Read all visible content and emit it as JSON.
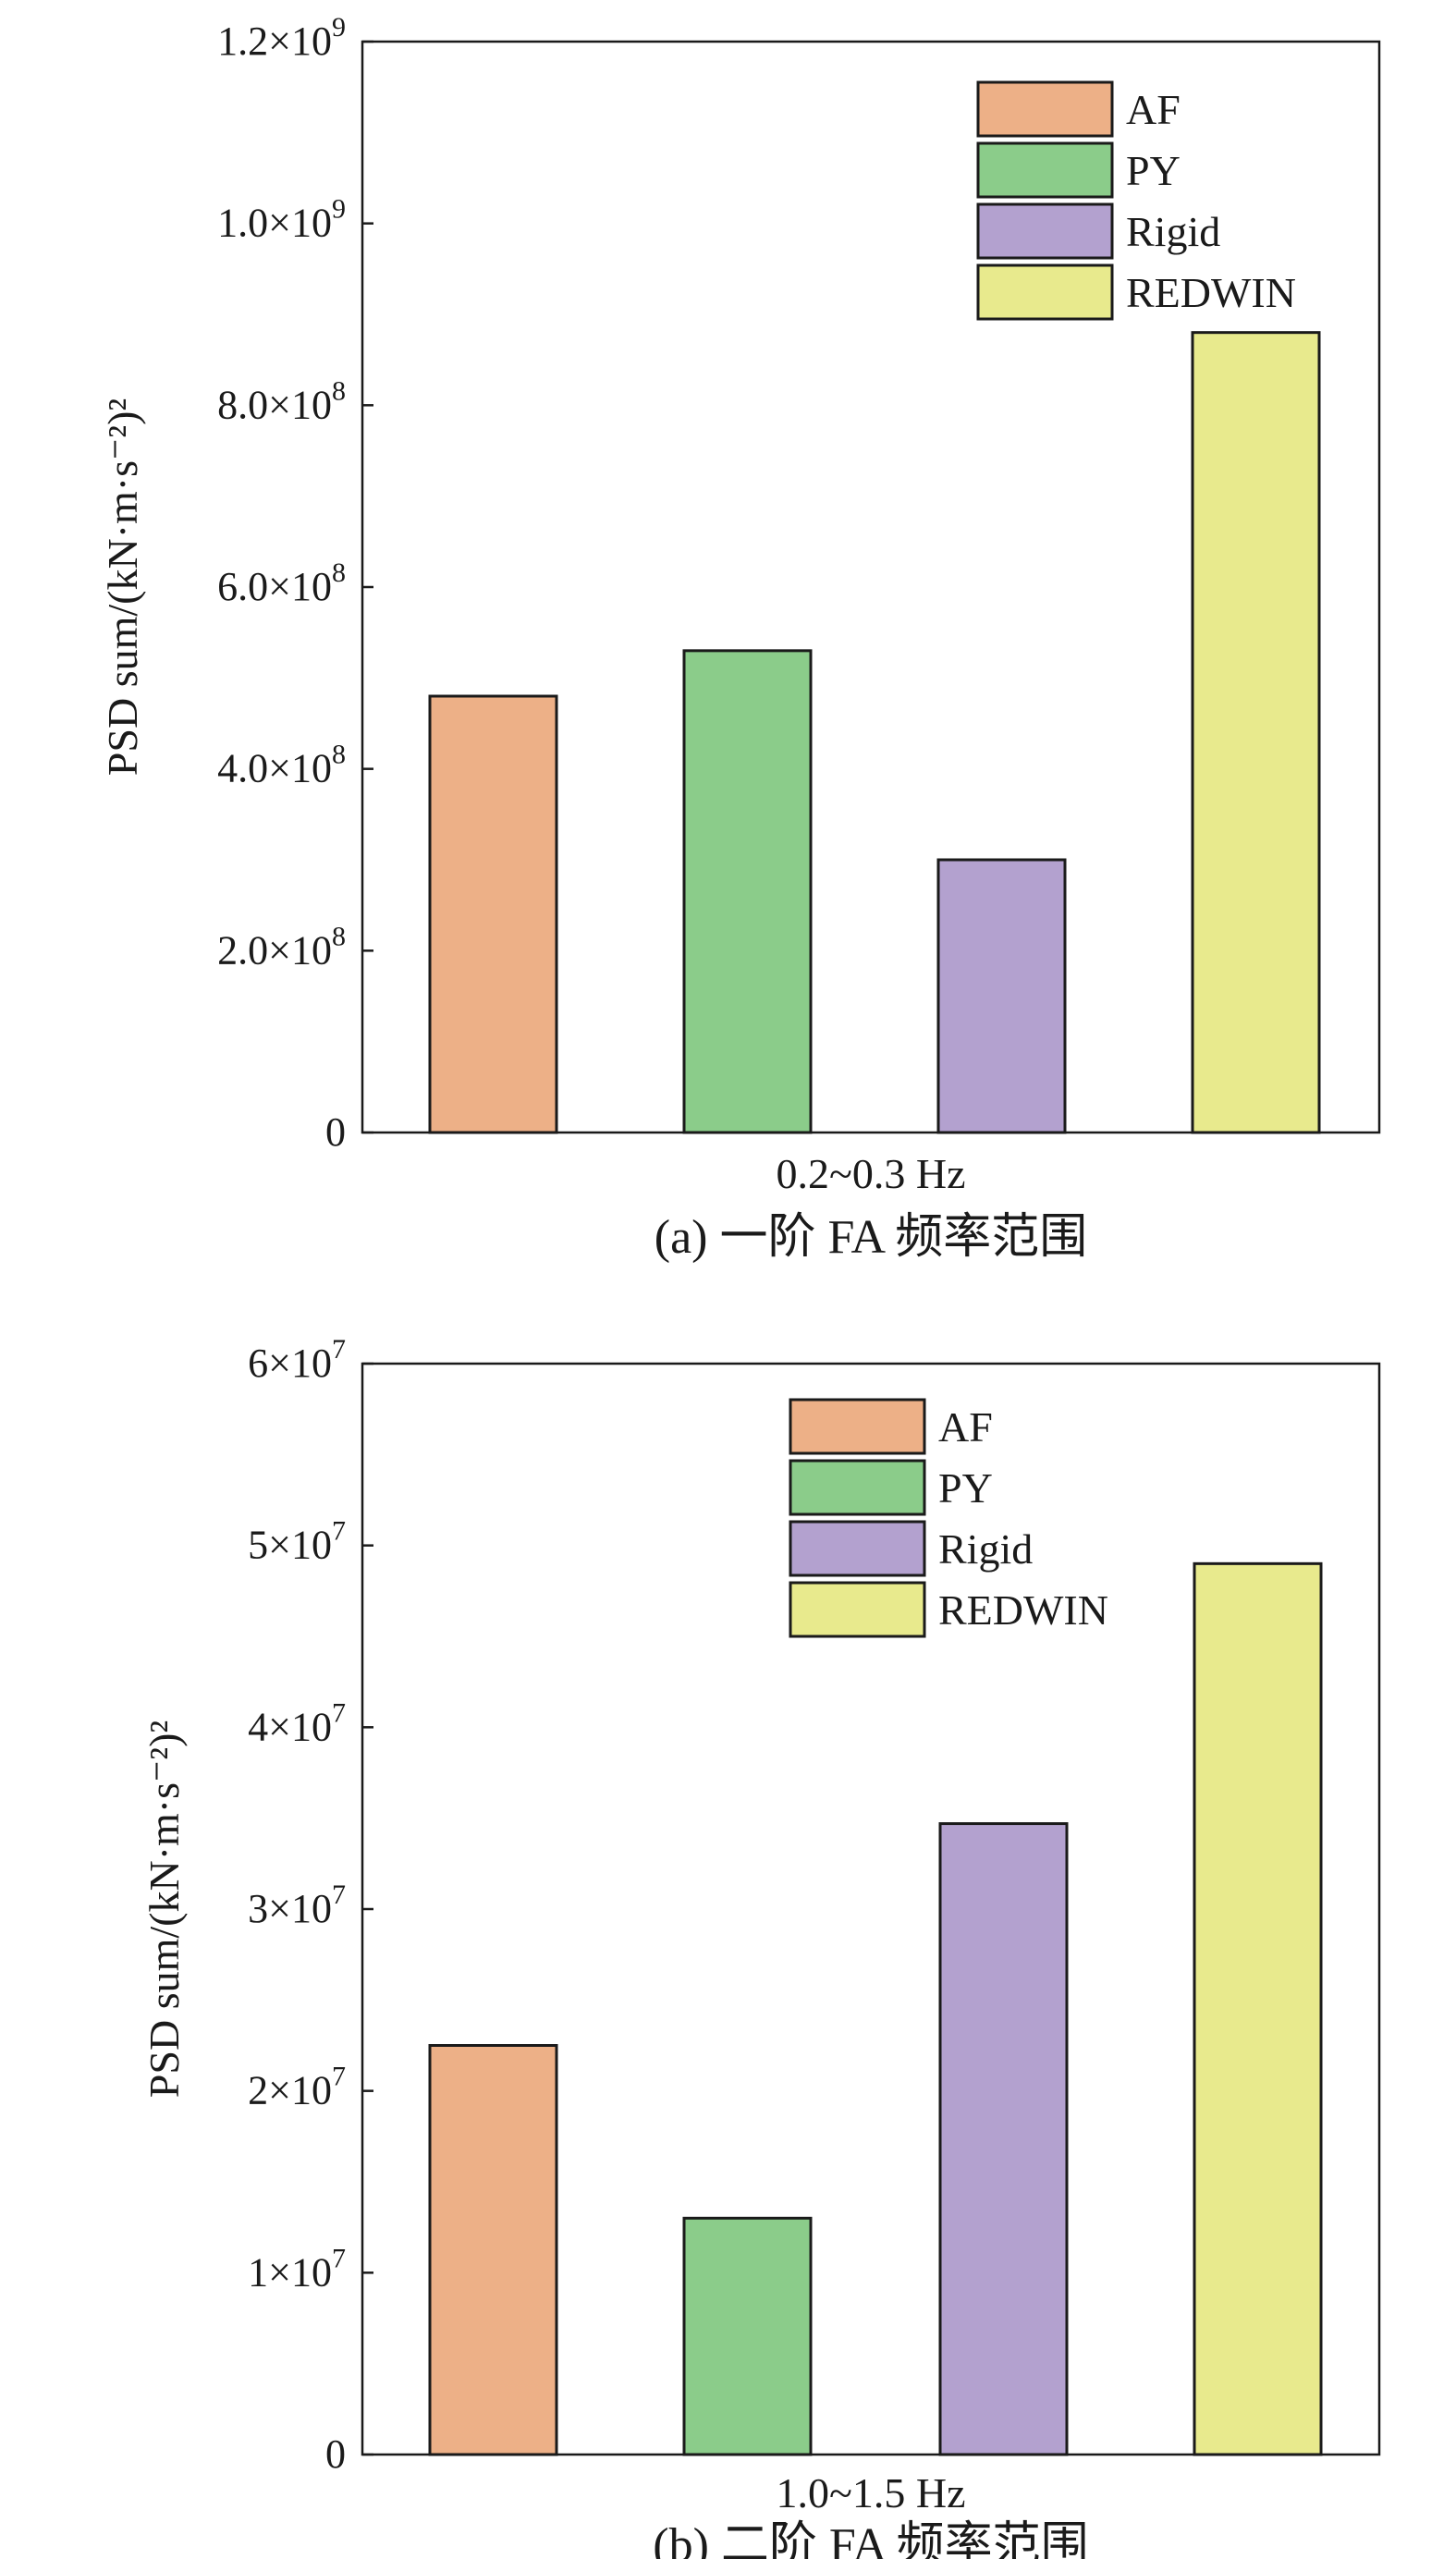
{
  "chart_data": [
    {
      "type": "bar",
      "categories": [
        "0.2~0.3 Hz"
      ],
      "series": [
        {
          "name": "AF",
          "values": [
            480000000
          ]
        },
        {
          "name": "PY",
          "values": [
            530000000
          ]
        },
        {
          "name": "Rigid",
          "values": [
            300000000
          ]
        },
        {
          "name": "REDWIN",
          "values": [
            880000000
          ]
        }
      ],
      "xlabel": "0.2~0.3 Hz",
      "ylabel": "PSD sum/(kN·m·s⁻²)²",
      "ylim": [
        0,
        1200000000
      ],
      "yticks": [
        {
          "value": 0,
          "mant": "0",
          "exp": ""
        },
        {
          "value": 200000000,
          "mant": "2.0×10",
          "exp": "8"
        },
        {
          "value": 400000000,
          "mant": "4.0×10",
          "exp": "8"
        },
        {
          "value": 600000000,
          "mant": "6.0×10",
          "exp": "8"
        },
        {
          "value": 800000000,
          "mant": "8.0×10",
          "exp": "8"
        },
        {
          "value": 1000000000,
          "mant": "1.0×10",
          "exp": "9"
        },
        {
          "value": 1200000000,
          "mant": "1.2×10",
          "exp": "9"
        }
      ],
      "caption": "(a) 一阶 FA 频率范围",
      "legend": "top-right",
      "grid": false
    },
    {
      "type": "bar",
      "categories": [
        "1.0~1.5 Hz"
      ],
      "series": [
        {
          "name": "AF",
          "values": [
            22500000
          ]
        },
        {
          "name": "PY",
          "values": [
            13000000
          ]
        },
        {
          "name": "Rigid",
          "values": [
            34700000
          ]
        },
        {
          "name": "REDWIN",
          "values": [
            49000000
          ]
        }
      ],
      "xlabel": "1.0~1.5 Hz",
      "ylabel": "PSD sum/(kN·m·s⁻²)²",
      "ylim": [
        0,
        60000000
      ],
      "yticks": [
        {
          "value": 0,
          "mant": "0",
          "exp": ""
        },
        {
          "value": 10000000,
          "mant": "1×10",
          "exp": "7"
        },
        {
          "value": 20000000,
          "mant": "2×10",
          "exp": "7"
        },
        {
          "value": 30000000,
          "mant": "3×10",
          "exp": "7"
        },
        {
          "value": 40000000,
          "mant": "4×10",
          "exp": "7"
        },
        {
          "value": 50000000,
          "mant": "5×10",
          "exp": "7"
        },
        {
          "value": 60000000,
          "mant": "6×10",
          "exp": "7"
        }
      ],
      "caption": "(b) 二阶 FA 频率范围",
      "legend": "top-center",
      "grid": false
    }
  ],
  "colors": {
    "AF": "#EDB087",
    "PY": "#8BCC8A",
    "Rigid": "#B3A1CF",
    "REDWIN": "#E8EA8D",
    "axis": "#1a1a1a"
  }
}
